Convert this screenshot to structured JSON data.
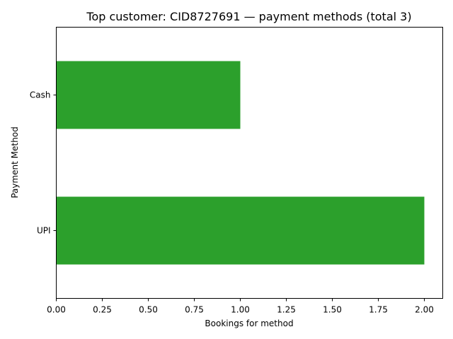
{
  "chart_data": {
    "type": "bar",
    "orientation": "horizontal",
    "title": "Top customer: CID8727691 — payment methods (total 3)",
    "xlabel": "Bookings for method",
    "ylabel": "Payment Method",
    "categories": [
      "UPI",
      "Cash"
    ],
    "values": [
      2,
      1
    ],
    "xlim": [
      0,
      2.1
    ],
    "xticks": [
      "0.00",
      "0.25",
      "0.50",
      "0.75",
      "1.00",
      "1.25",
      "1.50",
      "1.75",
      "2.00"
    ],
    "bar_color": "#2ca02c",
    "grid": false,
    "legend": "none"
  }
}
